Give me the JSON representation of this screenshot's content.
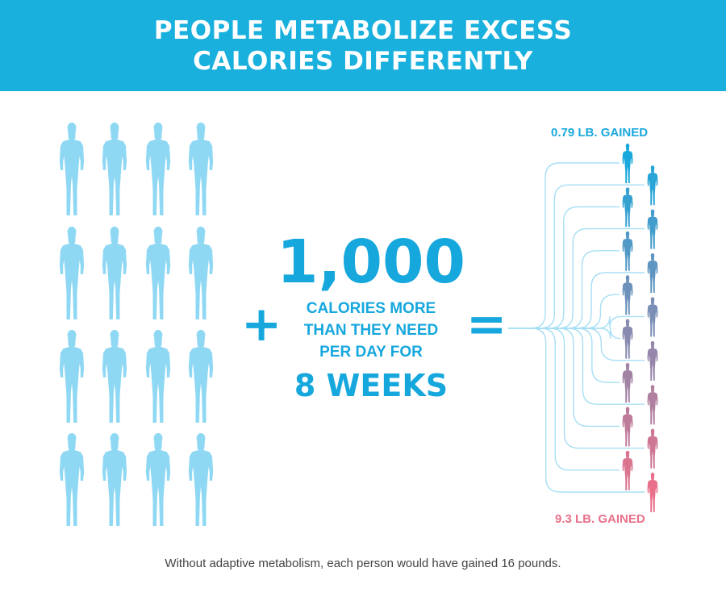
{
  "title": {
    "line1": "PEOPLE METABOLIZE EXCESS",
    "line2": "CALORIES DIFFERENTLY"
  },
  "colors": {
    "header_bg": "#1ab0dd",
    "accent": "#16a7dd",
    "person_light": "#8fd8f4",
    "branch_line": "#a8dff5",
    "gain_low": "#1aa8dc",
    "gain_high": "#e8708a"
  },
  "icons": {
    "person": "person-silhouette-icon",
    "plus": "plus-sign",
    "equals": "equals-sign"
  },
  "people_count": 16,
  "operator_plus": "+",
  "operator_equals": "=",
  "center": {
    "number": "1,000",
    "line1": "CALORIES MORE",
    "line2": "THAN THEY NEED",
    "line3": "PER DAY FOR",
    "duration": "8 WEEKS"
  },
  "gain_top_label": "0.79 LB. GAINED",
  "gain_bottom_label": "9.3 LB. GAINED",
  "footnote": "Without adaptive metabolism, each person would have gained 16 pounds.",
  "outcome_count": 16
}
